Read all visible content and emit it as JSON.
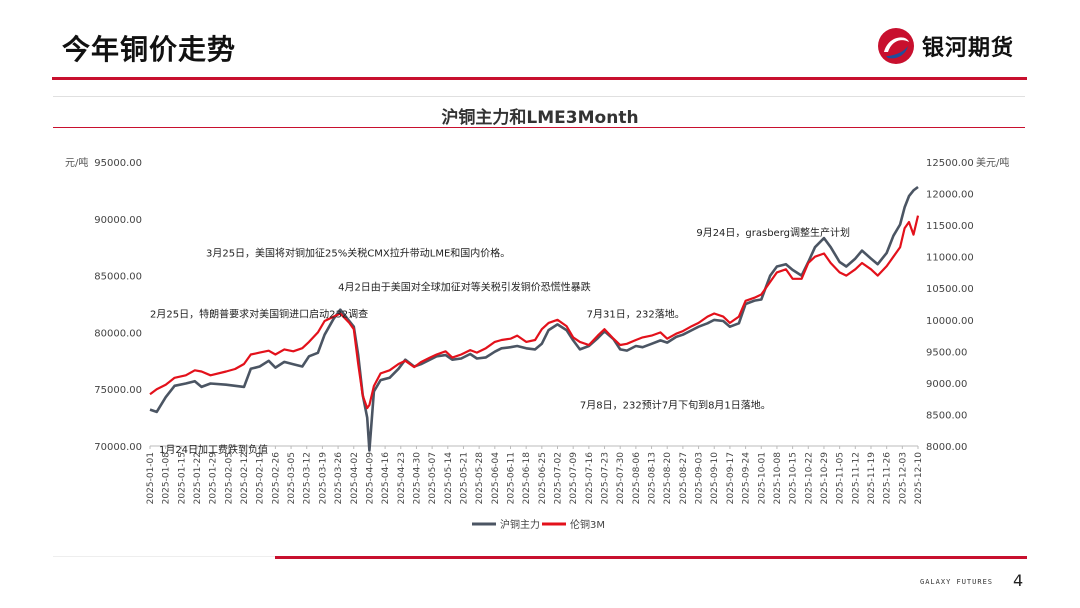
{
  "slide": {
    "title": "今年铜价走势",
    "brand": "银河期货",
    "footer": "GALAXY FUTURES",
    "page": "4"
  },
  "colors": {
    "accent": "#c8102e",
    "series1": "#4b5563",
    "series2": "#e3111b"
  },
  "chart_data": {
    "type": "line",
    "title": "沪铜主力和LME3Month",
    "left_unit": "元/吨",
    "right_unit": "美元/吨",
    "y_left": {
      "min": 70000,
      "max": 95000,
      "ticks": [
        "95000.00",
        "90000.00",
        "85000.00",
        "80000.00",
        "75000.00",
        "70000.00"
      ]
    },
    "y_right": {
      "min": 8000,
      "max": 12500,
      "ticks": [
        "12500.00",
        "12000.00",
        "11500.00",
        "11000.00",
        "10500.00",
        "10000.00",
        "9500.00",
        "9000.00",
        "8500.00",
        "8000.00"
      ]
    },
    "x_start": "2025-01-01",
    "x_end": "2025-12-10",
    "x_tick_labels": [
      "2025-01-01",
      "2025-01-08",
      "2025-01-15",
      "2025-01-22",
      "2025-01-29",
      "2025-02-05",
      "2025-02-12",
      "2025-02-19",
      "2025-02-26",
      "2025-03-05",
      "2025-03-12",
      "2025-03-19",
      "2025-03-26",
      "2025-04-02",
      "2025-04-09",
      "2025-04-16",
      "2025-04-23",
      "2025-04-30",
      "2025-05-07",
      "2025-05-14",
      "2025-05-21",
      "2025-05-28",
      "2025-06-04",
      "2025-06-11",
      "2025-06-18",
      "2025-06-25",
      "2025-07-02",
      "2025-07-09",
      "2025-07-16",
      "2025-07-23",
      "2025-07-30",
      "2025-08-06",
      "2025-08-13",
      "2025-08-20",
      "2025-08-27",
      "2025-09-03",
      "2025-09-10",
      "2025-09-17",
      "2025-09-24",
      "2025-10-01",
      "2025-10-08",
      "2025-10-15",
      "2025-10-22",
      "2025-10-29",
      "2025-11-05",
      "2025-11-12",
      "2025-11-19",
      "2025-11-26",
      "2025-12-03",
      "2025-12-10"
    ],
    "legend_position": "bottom",
    "series": [
      {
        "name": "沪铜主力",
        "axis": "left",
        "points": [
          [
            "2025-01-01",
            73200
          ],
          [
            "2025-01-04",
            73000
          ],
          [
            "2025-01-08",
            74300
          ],
          [
            "2025-01-12",
            75300
          ],
          [
            "2025-01-17",
            75500
          ],
          [
            "2025-01-21",
            75700
          ],
          [
            "2025-01-24",
            75200
          ],
          [
            "2025-01-28",
            75500
          ],
          [
            "2025-02-04",
            75400
          ],
          [
            "2025-02-08",
            75300
          ],
          [
            "2025-02-12",
            75200
          ],
          [
            "2025-02-15",
            76800
          ],
          [
            "2025-02-19",
            77000
          ],
          [
            "2025-02-23",
            77500
          ],
          [
            "2025-02-26",
            76900
          ],
          [
            "2025-03-02",
            77400
          ],
          [
            "2025-03-06",
            77200
          ],
          [
            "2025-03-10",
            77000
          ],
          [
            "2025-03-13",
            77900
          ],
          [
            "2025-03-17",
            78200
          ],
          [
            "2025-03-20",
            79800
          ],
          [
            "2025-03-24",
            81200
          ],
          [
            "2025-03-27",
            82000
          ],
          [
            "2025-03-31",
            81000
          ],
          [
            "2025-04-02",
            80500
          ],
          [
            "2025-04-04",
            78000
          ],
          [
            "2025-04-06",
            74500
          ],
          [
            "2025-04-08",
            72500
          ],
          [
            "2025-04-09",
            69600
          ],
          [
            "2025-04-11",
            74800
          ],
          [
            "2025-04-14",
            75800
          ],
          [
            "2025-04-18",
            76000
          ],
          [
            "2025-04-22",
            76800
          ],
          [
            "2025-04-25",
            77600
          ],
          [
            "2025-04-29",
            77000
          ],
          [
            "2025-05-02",
            77200
          ],
          [
            "2025-05-06",
            77600
          ],
          [
            "2025-05-09",
            77900
          ],
          [
            "2025-05-13",
            78000
          ],
          [
            "2025-05-16",
            77600
          ],
          [
            "2025-05-20",
            77700
          ],
          [
            "2025-05-24",
            78100
          ],
          [
            "2025-05-27",
            77700
          ],
          [
            "2025-05-31",
            77800
          ],
          [
            "2025-06-04",
            78300
          ],
          [
            "2025-06-07",
            78600
          ],
          [
            "2025-06-11",
            78700
          ],
          [
            "2025-06-14",
            78800
          ],
          [
            "2025-06-18",
            78600
          ],
          [
            "2025-06-22",
            78500
          ],
          [
            "2025-06-25",
            79000
          ],
          [
            "2025-06-28",
            80200
          ],
          [
            "2025-07-02",
            80700
          ],
          [
            "2025-07-06",
            80200
          ],
          [
            "2025-07-09",
            79300
          ],
          [
            "2025-07-12",
            78500
          ],
          [
            "2025-07-16",
            78800
          ],
          [
            "2025-07-20",
            79500
          ],
          [
            "2025-07-23",
            80100
          ],
          [
            "2025-07-27",
            79400
          ],
          [
            "2025-07-30",
            78500
          ],
          [
            "2025-08-02",
            78400
          ],
          [
            "2025-08-06",
            78800
          ],
          [
            "2025-08-09",
            78700
          ],
          [
            "2025-08-13",
            79000
          ],
          [
            "2025-08-17",
            79300
          ],
          [
            "2025-08-20",
            79100
          ],
          [
            "2025-08-24",
            79600
          ],
          [
            "2025-08-27",
            79800
          ],
          [
            "2025-08-31",
            80200
          ],
          [
            "2025-09-03",
            80500
          ],
          [
            "2025-09-07",
            80800
          ],
          [
            "2025-09-10",
            81100
          ],
          [
            "2025-09-14",
            81000
          ],
          [
            "2025-09-17",
            80500
          ],
          [
            "2025-09-21",
            80800
          ],
          [
            "2025-09-24",
            82500
          ],
          [
            "2025-09-28",
            82800
          ],
          [
            "2025-10-01",
            82900
          ],
          [
            "2025-10-05",
            85000
          ],
          [
            "2025-10-08",
            85800
          ],
          [
            "2025-10-12",
            86000
          ],
          [
            "2025-10-15",
            85500
          ],
          [
            "2025-10-19",
            85000
          ],
          [
            "2025-10-22",
            86200
          ],
          [
            "2025-10-25",
            87500
          ],
          [
            "2025-10-29",
            88300
          ],
          [
            "2025-11-01",
            87500
          ],
          [
            "2025-11-05",
            86200
          ],
          [
            "2025-11-08",
            85800
          ],
          [
            "2025-11-12",
            86500
          ],
          [
            "2025-11-15",
            87200
          ],
          [
            "2025-11-19",
            86500
          ],
          [
            "2025-11-22",
            86000
          ],
          [
            "2025-11-26",
            87000
          ],
          [
            "2025-11-29",
            88500
          ],
          [
            "2025-12-02",
            89500
          ],
          [
            "2025-12-04",
            91000
          ],
          [
            "2025-12-06",
            92000
          ],
          [
            "2025-12-08",
            92500
          ],
          [
            "2025-12-10",
            92800
          ]
        ]
      },
      {
        "name": "伦铜3M",
        "axis": "right",
        "points": [
          [
            "2025-01-01",
            8820
          ],
          [
            "2025-01-04",
            8900
          ],
          [
            "2025-01-08",
            8970
          ],
          [
            "2025-01-12",
            9080
          ],
          [
            "2025-01-17",
            9120
          ],
          [
            "2025-01-21",
            9200
          ],
          [
            "2025-01-24",
            9180
          ],
          [
            "2025-01-28",
            9120
          ],
          [
            "2025-02-04",
            9180
          ],
          [
            "2025-02-08",
            9220
          ],
          [
            "2025-02-12",
            9300
          ],
          [
            "2025-02-15",
            9450
          ],
          [
            "2025-02-19",
            9480
          ],
          [
            "2025-02-23",
            9510
          ],
          [
            "2025-02-26",
            9450
          ],
          [
            "2025-03-02",
            9530
          ],
          [
            "2025-03-06",
            9500
          ],
          [
            "2025-03-10",
            9550
          ],
          [
            "2025-03-13",
            9650
          ],
          [
            "2025-03-17",
            9800
          ],
          [
            "2025-03-20",
            9980
          ],
          [
            "2025-03-24",
            10050
          ],
          [
            "2025-03-27",
            10100
          ],
          [
            "2025-03-31",
            9950
          ],
          [
            "2025-04-02",
            9850
          ],
          [
            "2025-04-04",
            9300
          ],
          [
            "2025-04-06",
            8800
          ],
          [
            "2025-04-08",
            8600
          ],
          [
            "2025-04-09",
            8650
          ],
          [
            "2025-04-11",
            8950
          ],
          [
            "2025-04-14",
            9150
          ],
          [
            "2025-04-18",
            9200
          ],
          [
            "2025-04-22",
            9300
          ],
          [
            "2025-04-25",
            9350
          ],
          [
            "2025-04-29",
            9250
          ],
          [
            "2025-05-02",
            9330
          ],
          [
            "2025-05-06",
            9400
          ],
          [
            "2025-05-09",
            9450
          ],
          [
            "2025-05-13",
            9500
          ],
          [
            "2025-05-16",
            9400
          ],
          [
            "2025-05-20",
            9450
          ],
          [
            "2025-05-24",
            9520
          ],
          [
            "2025-05-27",
            9480
          ],
          [
            "2025-05-31",
            9550
          ],
          [
            "2025-06-04",
            9650
          ],
          [
            "2025-06-07",
            9680
          ],
          [
            "2025-06-11",
            9700
          ],
          [
            "2025-06-14",
            9750
          ],
          [
            "2025-06-18",
            9650
          ],
          [
            "2025-06-22",
            9680
          ],
          [
            "2025-06-25",
            9850
          ],
          [
            "2025-06-28",
            9950
          ],
          [
            "2025-07-02",
            10000
          ],
          [
            "2025-07-06",
            9900
          ],
          [
            "2025-07-09",
            9720
          ],
          [
            "2025-07-12",
            9650
          ],
          [
            "2025-07-16",
            9600
          ],
          [
            "2025-07-20",
            9750
          ],
          [
            "2025-07-23",
            9850
          ],
          [
            "2025-07-27",
            9700
          ],
          [
            "2025-07-30",
            9600
          ],
          [
            "2025-08-02",
            9620
          ],
          [
            "2025-08-06",
            9680
          ],
          [
            "2025-08-09",
            9720
          ],
          [
            "2025-08-13",
            9750
          ],
          [
            "2025-08-17",
            9800
          ],
          [
            "2025-08-20",
            9700
          ],
          [
            "2025-08-24",
            9780
          ],
          [
            "2025-08-27",
            9820
          ],
          [
            "2025-08-31",
            9900
          ],
          [
            "2025-09-03",
            9950
          ],
          [
            "2025-09-07",
            10050
          ],
          [
            "2025-09-10",
            10100
          ],
          [
            "2025-09-14",
            10050
          ],
          [
            "2025-09-17",
            9950
          ],
          [
            "2025-09-21",
            10050
          ],
          [
            "2025-09-24",
            10300
          ],
          [
            "2025-09-28",
            10350
          ],
          [
            "2025-10-01",
            10400
          ],
          [
            "2025-10-05",
            10600
          ],
          [
            "2025-10-08",
            10750
          ],
          [
            "2025-10-12",
            10800
          ],
          [
            "2025-10-15",
            10650
          ],
          [
            "2025-10-19",
            10650
          ],
          [
            "2025-10-22",
            10900
          ],
          [
            "2025-10-25",
            11000
          ],
          [
            "2025-10-29",
            11050
          ],
          [
            "2025-11-01",
            10900
          ],
          [
            "2025-11-05",
            10750
          ],
          [
            "2025-11-08",
            10700
          ],
          [
            "2025-11-12",
            10800
          ],
          [
            "2025-11-15",
            10900
          ],
          [
            "2025-11-19",
            10800
          ],
          [
            "2025-11-22",
            10700
          ],
          [
            "2025-11-26",
            10850
          ],
          [
            "2025-11-29",
            11000
          ],
          [
            "2025-12-02",
            11150
          ],
          [
            "2025-12-04",
            11450
          ],
          [
            "2025-12-06",
            11550
          ],
          [
            "2025-12-08",
            11350
          ],
          [
            "2025-12-10",
            11650
          ]
        ]
      }
    ],
    "annotations": [
      {
        "text": "3月25日，美国将对铜加征25%关税CMX拉升带动LME和国内价格。",
        "date": "2025-01-26",
        "value": 86700
      },
      {
        "text": "4月2日由于美国对全球加征对等关税引发铜价恐慌性暴跌",
        "date": "2025-03-26",
        "value": 83700
      },
      {
        "text": "2月25日，特朗普要求对美国铜进口启动232调查",
        "date": "2025-01-01",
        "value": 81300
      },
      {
        "text": "7月31日，232落地。",
        "date": "2025-07-15",
        "value": 81300
      },
      {
        "text": "7月8日，232预计7月下旬到8月1日落地。",
        "date": "2025-07-12",
        "value": 73300
      },
      {
        "text": "9月24日，grasberg调整生产计划",
        "date": "2025-09-02",
        "value": 88500
      },
      {
        "text": "1月24日加工费跌到负值",
        "date": "2025-01-05",
        "value": 69400
      }
    ]
  }
}
